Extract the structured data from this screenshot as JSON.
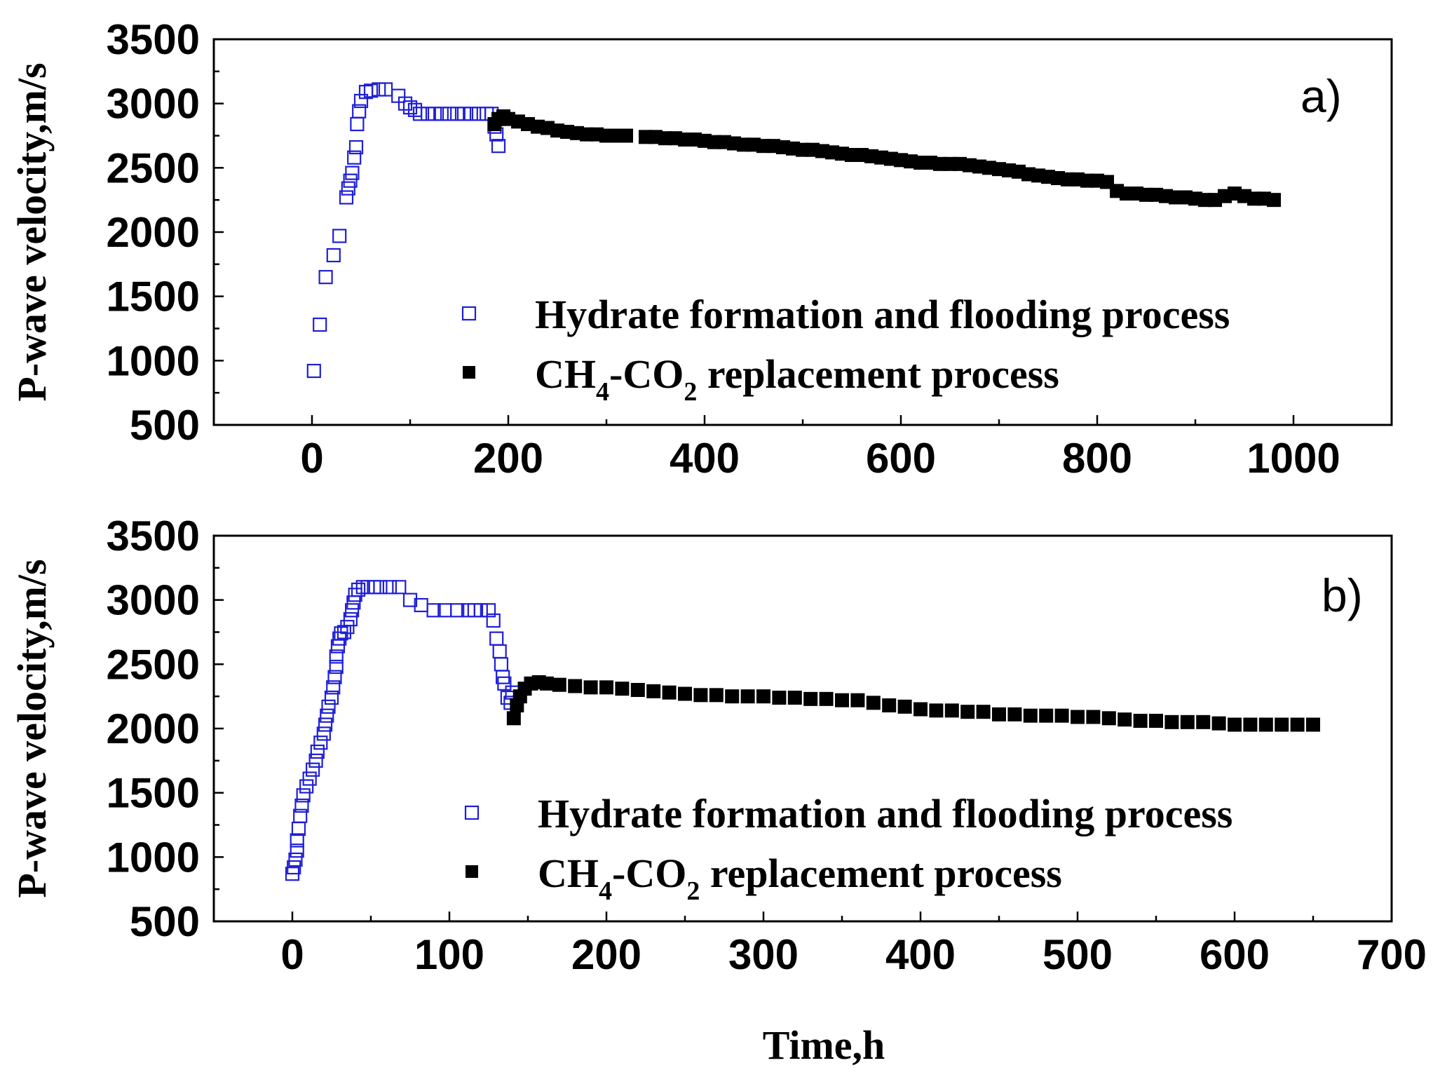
{
  "colors": {
    "formation": "#1f1fd6",
    "replacement": "#000000",
    "axis": "#000000"
  },
  "xlabel": "Time,h",
  "chart_data": [
    {
      "panel": "a)",
      "type": "scatter",
      "ylabel": "P-wave velocity,m/s",
      "xlim": [
        -100,
        1100
      ],
      "ylim": [
        500,
        3500
      ],
      "xticks": [
        0,
        200,
        400,
        600,
        800,
        1000
      ],
      "yticks": [
        500,
        1000,
        1500,
        2000,
        2500,
        3000,
        3500
      ],
      "legend": {
        "position": "center-right"
      },
      "series": [
        {
          "name": "Hydrate formation and flooding process",
          "marker": "open-square",
          "color": "#1f1fd6",
          "points": [
            [
              2,
              920
            ],
            [
              8,
              1280
            ],
            [
              14,
              1650
            ],
            [
              22,
              1820
            ],
            [
              28,
              1970
            ],
            [
              35,
              2270
            ],
            [
              37,
              2340
            ],
            [
              39,
              2400
            ],
            [
              41,
              2460
            ],
            [
              43,
              2580
            ],
            [
              45,
              2660
            ],
            [
              46,
              2840
            ],
            [
              48,
              2940
            ],
            [
              50,
              3020
            ],
            [
              55,
              3090
            ],
            [
              60,
              3100
            ],
            [
              68,
              3110
            ],
            [
              75,
              3110
            ],
            [
              88,
              3060
            ],
            [
              95,
              3000
            ],
            [
              100,
              2970
            ],
            [
              105,
              2950
            ],
            [
              110,
              2920
            ],
            [
              118,
              2920
            ],
            [
              125,
              2920
            ],
            [
              132,
              2920
            ],
            [
              140,
              2920
            ],
            [
              148,
              2920
            ],
            [
              155,
              2920
            ],
            [
              162,
              2920
            ],
            [
              170,
              2920
            ],
            [
              178,
              2920
            ],
            [
              183,
              2920
            ],
            [
              186,
              2820
            ],
            [
              188,
              2760
            ],
            [
              190,
              2670
            ]
          ]
        },
        {
          "name": "CH4-CO2 replacement process",
          "marker": "filled-square",
          "color": "#000000",
          "points": [
            [
              186,
              2840
            ],
            [
              190,
              2880
            ],
            [
              195,
              2900
            ],
            [
              200,
              2880
            ],
            [
              210,
              2860
            ],
            [
              220,
              2840
            ],
            [
              230,
              2820
            ],
            [
              240,
              2810
            ],
            [
              250,
              2790
            ],
            [
              260,
              2780
            ],
            [
              270,
              2770
            ],
            [
              280,
              2760
            ],
            [
              290,
              2760
            ],
            [
              300,
              2750
            ],
            [
              310,
              2750
            ],
            [
              320,
              2750
            ],
            [
              340,
              2740
            ],
            [
              350,
              2740
            ],
            [
              360,
              2730
            ],
            [
              370,
              2730
            ],
            [
              380,
              2720
            ],
            [
              390,
              2720
            ],
            [
              400,
              2710
            ],
            [
              410,
              2700
            ],
            [
              420,
              2700
            ],
            [
              430,
              2690
            ],
            [
              440,
              2680
            ],
            [
              450,
              2680
            ],
            [
              460,
              2670
            ],
            [
              470,
              2670
            ],
            [
              480,
              2660
            ],
            [
              490,
              2650
            ],
            [
              500,
              2640
            ],
            [
              510,
              2640
            ],
            [
              520,
              2630
            ],
            [
              530,
              2620
            ],
            [
              540,
              2610
            ],
            [
              550,
              2600
            ],
            [
              560,
              2600
            ],
            [
              570,
              2590
            ],
            [
              580,
              2580
            ],
            [
              590,
              2570
            ],
            [
              600,
              2560
            ],
            [
              610,
              2550
            ],
            [
              620,
              2540
            ],
            [
              630,
              2540
            ],
            [
              640,
              2530
            ],
            [
              650,
              2530
            ],
            [
              660,
              2530
            ],
            [
              670,
              2520
            ],
            [
              680,
              2510
            ],
            [
              690,
              2500
            ],
            [
              700,
              2490
            ],
            [
              710,
              2480
            ],
            [
              720,
              2470
            ],
            [
              730,
              2450
            ],
            [
              740,
              2440
            ],
            [
              750,
              2430
            ],
            [
              760,
              2420
            ],
            [
              770,
              2410
            ],
            [
              780,
              2410
            ],
            [
              790,
              2400
            ],
            [
              800,
              2400
            ],
            [
              810,
              2390
            ],
            [
              820,
              2320
            ],
            [
              830,
              2300
            ],
            [
              840,
              2300
            ],
            [
              850,
              2290
            ],
            [
              860,
              2290
            ],
            [
              870,
              2280
            ],
            [
              880,
              2270
            ],
            [
              890,
              2270
            ],
            [
              900,
              2260
            ],
            [
              910,
              2250
            ],
            [
              920,
              2250
            ],
            [
              930,
              2280
            ],
            [
              940,
              2300
            ],
            [
              950,
              2280
            ],
            [
              960,
              2260
            ],
            [
              970,
              2260
            ],
            [
              980,
              2250
            ]
          ]
        }
      ]
    },
    {
      "panel": "b)",
      "type": "scatter",
      "ylabel": "P-wave velocity,m/s",
      "xlim": [
        -50,
        700
      ],
      "ylim": [
        500,
        3500
      ],
      "xticks": [
        0,
        100,
        200,
        300,
        400,
        500,
        600,
        700
      ],
      "yticks": [
        500,
        1000,
        1500,
        2000,
        2500,
        3000,
        3500
      ],
      "legend": {
        "position": "center-right"
      },
      "series": [
        {
          "name": "Hydrate formation and flooding process",
          "marker": "open-square",
          "color": "#1f1fd6",
          "points": [
            [
              0,
              870
            ],
            [
              1,
              920
            ],
            [
              2,
              980
            ],
            [
              3,
              1050
            ],
            [
              3,
              1130
            ],
            [
              4,
              1220
            ],
            [
              5,
              1320
            ],
            [
              6,
              1400
            ],
            [
              7,
              1480
            ],
            [
              9,
              1550
            ],
            [
              11,
              1610
            ],
            [
              13,
              1680
            ],
            [
              15,
              1750
            ],
            [
              16,
              1820
            ],
            [
              18,
              1890
            ],
            [
              20,
              1960
            ],
            [
              21,
              2030
            ],
            [
              22,
              2100
            ],
            [
              23,
              2170
            ],
            [
              25,
              2240
            ],
            [
              26,
              2320
            ],
            [
              27,
              2400
            ],
            [
              28,
              2480
            ],
            [
              28,
              2560
            ],
            [
              29,
              2640
            ],
            [
              30,
              2700
            ],
            [
              31,
              2740
            ],
            [
              33,
              2750
            ],
            [
              35,
              2790
            ],
            [
              37,
              2850
            ],
            [
              38,
              2920
            ],
            [
              39,
              2980
            ],
            [
              40,
              3040
            ],
            [
              42,
              3080
            ],
            [
              45,
              3100
            ],
            [
              48,
              3100
            ],
            [
              52,
              3100
            ],
            [
              56,
              3100
            ],
            [
              62,
              3100
            ],
            [
              68,
              3100
            ],
            [
              75,
              3000
            ],
            [
              82,
              2960
            ],
            [
              90,
              2920
            ],
            [
              97,
              2920
            ],
            [
              105,
              2920
            ],
            [
              112,
              2920
            ],
            [
              116,
              2920
            ],
            [
              120,
              2920
            ],
            [
              125,
              2920
            ],
            [
              128,
              2840
            ],
            [
              130,
              2700
            ],
            [
              132,
              2600
            ],
            [
              133,
              2500
            ],
            [
              134,
              2400
            ],
            [
              135,
              2350
            ],
            [
              137,
              2240
            ],
            [
              139,
              2200
            ],
            [
              140,
              2280
            ]
          ]
        },
        {
          "name": "CH4-CO2 replacement process",
          "marker": "filled-square",
          "color": "#000000",
          "points": [
            [
              141,
              2080
            ],
            [
              143,
              2180
            ],
            [
              145,
              2250
            ],
            [
              148,
              2310
            ],
            [
              152,
              2350
            ],
            [
              157,
              2360
            ],
            [
              162,
              2350
            ],
            [
              170,
              2340
            ],
            [
              180,
              2330
            ],
            [
              190,
              2320
            ],
            [
              200,
              2320
            ],
            [
              210,
              2310
            ],
            [
              220,
              2300
            ],
            [
              230,
              2290
            ],
            [
              240,
              2280
            ],
            [
              250,
              2270
            ],
            [
              260,
              2260
            ],
            [
              270,
              2260
            ],
            [
              280,
              2250
            ],
            [
              290,
              2250
            ],
            [
              300,
              2250
            ],
            [
              310,
              2240
            ],
            [
              320,
              2240
            ],
            [
              330,
              2230
            ],
            [
              340,
              2230
            ],
            [
              350,
              2220
            ],
            [
              360,
              2220
            ],
            [
              370,
              2200
            ],
            [
              380,
              2180
            ],
            [
              390,
              2170
            ],
            [
              400,
              2150
            ],
            [
              410,
              2140
            ],
            [
              420,
              2140
            ],
            [
              430,
              2130
            ],
            [
              440,
              2130
            ],
            [
              450,
              2110
            ],
            [
              460,
              2110
            ],
            [
              470,
              2100
            ],
            [
              480,
              2100
            ],
            [
              490,
              2100
            ],
            [
              500,
              2090
            ],
            [
              510,
              2090
            ],
            [
              520,
              2080
            ],
            [
              530,
              2070
            ],
            [
              540,
              2060
            ],
            [
              550,
              2060
            ],
            [
              560,
              2050
            ],
            [
              570,
              2050
            ],
            [
              580,
              2050
            ],
            [
              590,
              2040
            ],
            [
              600,
              2030
            ],
            [
              610,
              2030
            ],
            [
              620,
              2030
            ],
            [
              630,
              2030
            ],
            [
              640,
              2030
            ],
            [
              650,
              2030
            ]
          ]
        }
      ]
    }
  ],
  "panels_text": [
    {
      "tag": "a)",
      "ylabel": "P-wave velocity,m/s",
      "legend": {
        "formation": "Hydrate formation and flooding process",
        "replacement_pre": "CH",
        "replacement_sub1": "4",
        "replacement_mid": "-CO",
        "replacement_sub2": "2",
        "replacement_post": " replacement process"
      }
    },
    {
      "tag": "b)",
      "ylabel": "P-wave velocity,m/s",
      "legend": {
        "formation": "Hydrate formation and flooding process",
        "replacement_pre": "CH",
        "replacement_sub1": "4",
        "replacement_mid": "-CO",
        "replacement_sub2": "2",
        "replacement_post": " replacement process"
      }
    }
  ]
}
